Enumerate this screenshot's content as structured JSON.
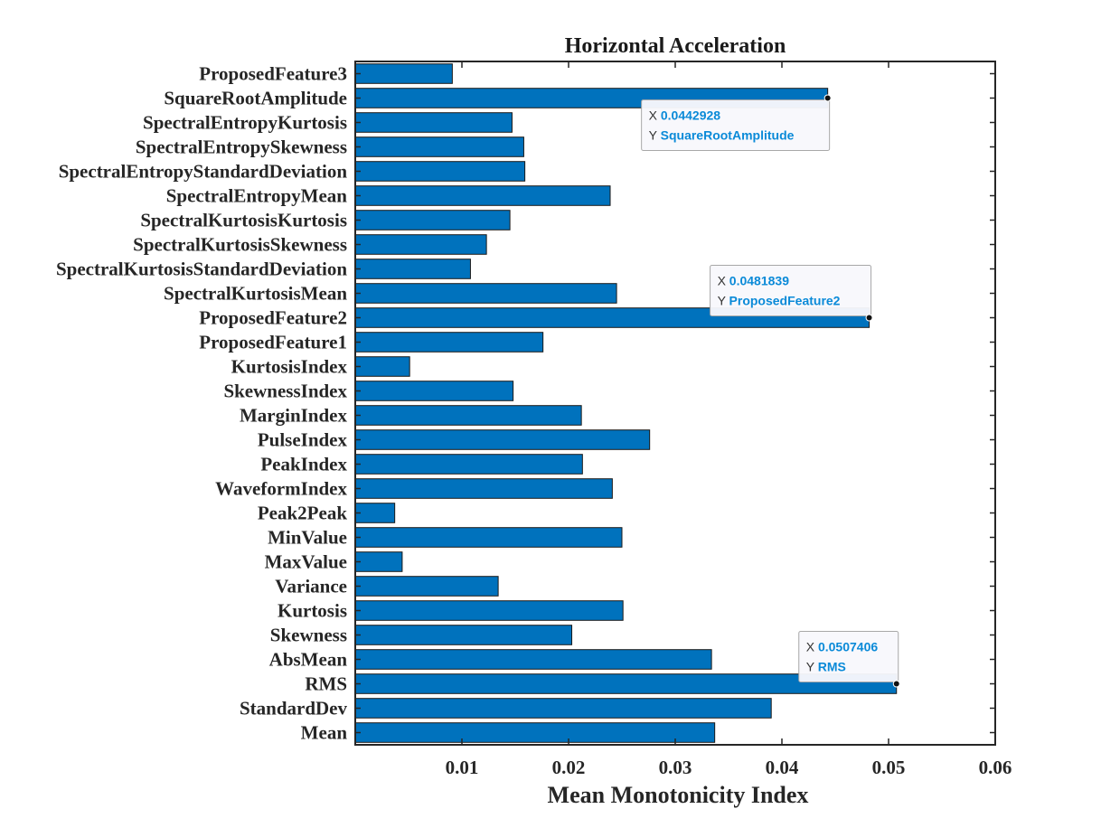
{
  "chart_data": {
    "type": "bar",
    "orientation": "horizontal",
    "title": "Horizontal Acceleration",
    "xlabel": "Mean Monotonicity Index",
    "ylabel": "",
    "xlim": [
      0,
      0.06
    ],
    "xticks": [
      "0.01",
      "0.02",
      "0.03",
      "0.04",
      "0.05",
      "0.06"
    ],
    "xtick_values": [
      0.01,
      0.02,
      0.03,
      0.04,
      0.05,
      0.06
    ],
    "grid": false,
    "bar_color": "#0072BD",
    "categories": [
      "Mean",
      "StandardDev",
      "RMS",
      "AbsMean",
      "Skewness",
      "Kurtosis",
      "Variance",
      "MaxValue",
      "MinValue",
      "Peak2Peak",
      "WaveformIndex",
      "PeakIndex",
      "PulseIndex",
      "MarginIndex",
      "SkewnessIndex",
      "KurtosisIndex",
      "ProposedFeature1",
      "ProposedFeature2",
      "SpectralKurtosisMean",
      "SpectralKurtosisStandardDeviation",
      "SpectralKurtosisSkewness",
      "SpectralKurtosisKurtosis",
      "SpectralEntropyMean",
      "SpectralEntropyStandardDeviation",
      "SpectralEntropySkewness",
      "SpectralEntropyKurtosis",
      "SquareRootAmplitude",
      "ProposedFeature3"
    ],
    "values": [
      0.0337,
      0.039,
      0.0507406,
      0.0334,
      0.0203,
      0.0251,
      0.0134,
      0.0044,
      0.025,
      0.0037,
      0.0241,
      0.0213,
      0.0276,
      0.0212,
      0.0148,
      0.0051,
      0.0176,
      0.0481839,
      0.0245,
      0.0108,
      0.0123,
      0.0145,
      0.0239,
      0.0159,
      0.0158,
      0.0147,
      0.0442928,
      0.0091
    ],
    "datatips": [
      {
        "x_label": "X",
        "x_value": "0.0442928",
        "y_label": "Y",
        "y_value": "SquareRootAmplitude",
        "category": "SquareRootAmplitude"
      },
      {
        "x_label": "X",
        "x_value": "0.0481839",
        "y_label": "Y",
        "y_value": "ProposedFeature2",
        "category": "ProposedFeature2"
      },
      {
        "x_label": "X",
        "x_value": "0.0507406",
        "y_label": "Y",
        "y_value": "RMS",
        "category": "RMS"
      }
    ]
  }
}
